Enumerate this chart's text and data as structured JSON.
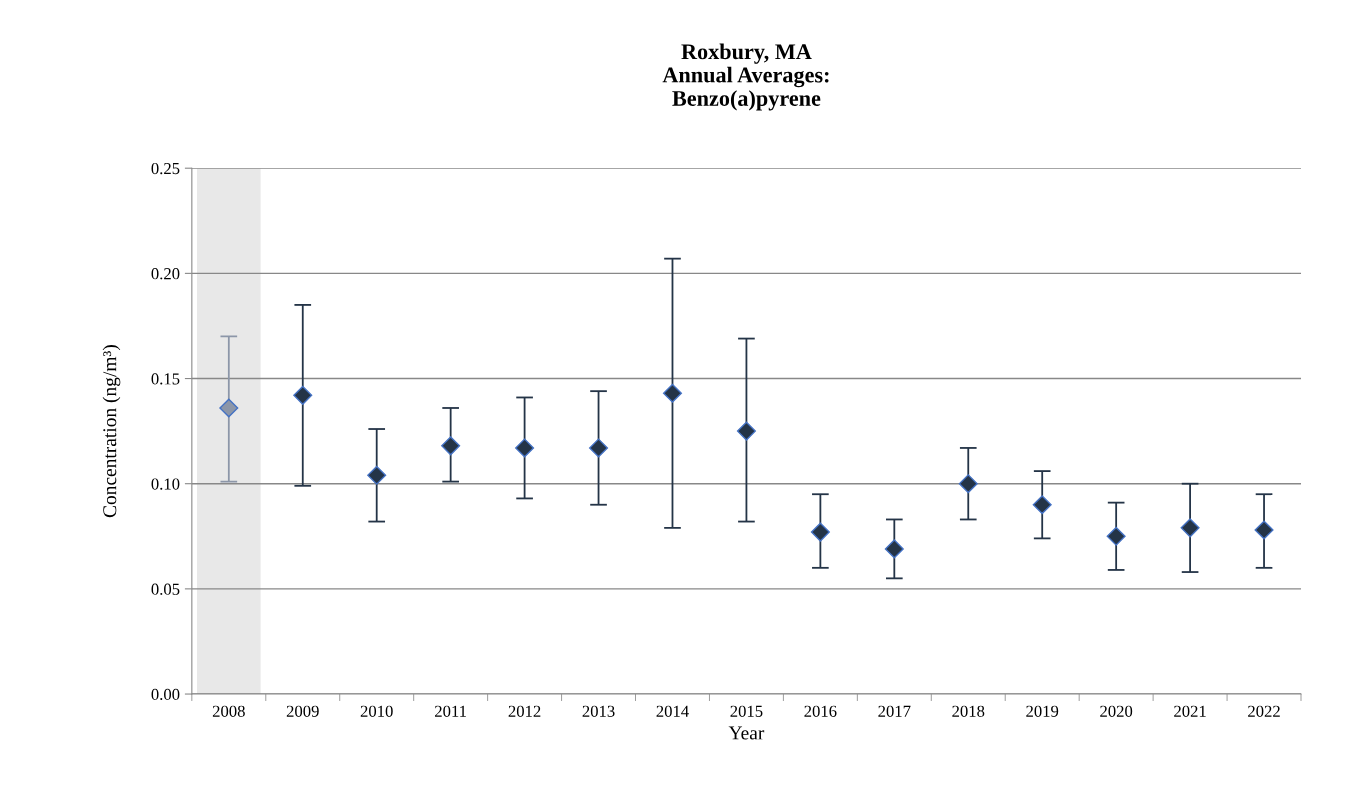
{
  "chart_data": {
    "type": "scatter",
    "title": "Roxbury, MA\nAnnual Averages:\nBenzo(a)pyrene",
    "xlabel": "Year",
    "ylabel": "Concentration (ng/m³)",
    "categories": [
      "2008",
      "2009",
      "2010",
      "2011",
      "2012",
      "2013",
      "2014",
      "2015",
      "2016",
      "2017",
      "2018",
      "2019",
      "2020",
      "2021",
      "2022"
    ],
    "series": [
      {
        "color": "#8c96a8",
        "values": [
          0.136,
          null,
          null,
          null,
          null,
          null,
          null,
          null,
          null,
          null,
          null,
          null,
          null,
          null,
          null
        ],
        "errors": [
          [
            0.101,
            0.17
          ],
          null,
          null,
          null,
          null,
          null,
          null,
          null,
          null,
          null,
          null,
          null,
          null,
          null,
          null
        ]
      },
      {
        "color": "#243447",
        "values": [
          null,
          0.142,
          0.104,
          0.118,
          0.117,
          0.117,
          0.143,
          0.125,
          0.077,
          0.069,
          0.1,
          0.09,
          0.075,
          0.079,
          0.078
        ],
        "errors": [
          null,
          [
            0.099,
            0.185
          ],
          [
            0.082,
            0.126
          ],
          [
            0.101,
            0.136
          ],
          [
            0.093,
            0.141
          ],
          [
            0.09,
            0.144
          ],
          [
            0.079,
            0.207
          ],
          [
            0.082,
            0.169
          ],
          [
            0.06,
            0.095
          ],
          [
            0.055,
            0.083
          ],
          [
            0.083,
            0.117
          ],
          [
            0.074,
            0.106
          ],
          [
            0.059,
            0.091
          ],
          [
            0.058,
            0.1
          ],
          [
            0.06,
            0.095
          ]
        ]
      }
    ],
    "bands": [
      {
        "axis": "x",
        "from": "2008",
        "to": "2008",
        "color": "#e8e8e8"
      }
    ],
    "ylim": [
      0,
      0.25
    ],
    "yticks": [
      {
        "value": 0,
        "label": "0.00"
      },
      {
        "value": 0.05,
        "label": "0.05"
      },
      {
        "value": 0.1,
        "label": "0.10"
      },
      {
        "value": 0.15,
        "label": "0.15"
      },
      {
        "value": 0.2,
        "label": "0.20"
      },
      {
        "value": 0.25,
        "label": "0.25"
      }
    ],
    "grid": "y",
    "marker": "diamond",
    "legend": false
  }
}
